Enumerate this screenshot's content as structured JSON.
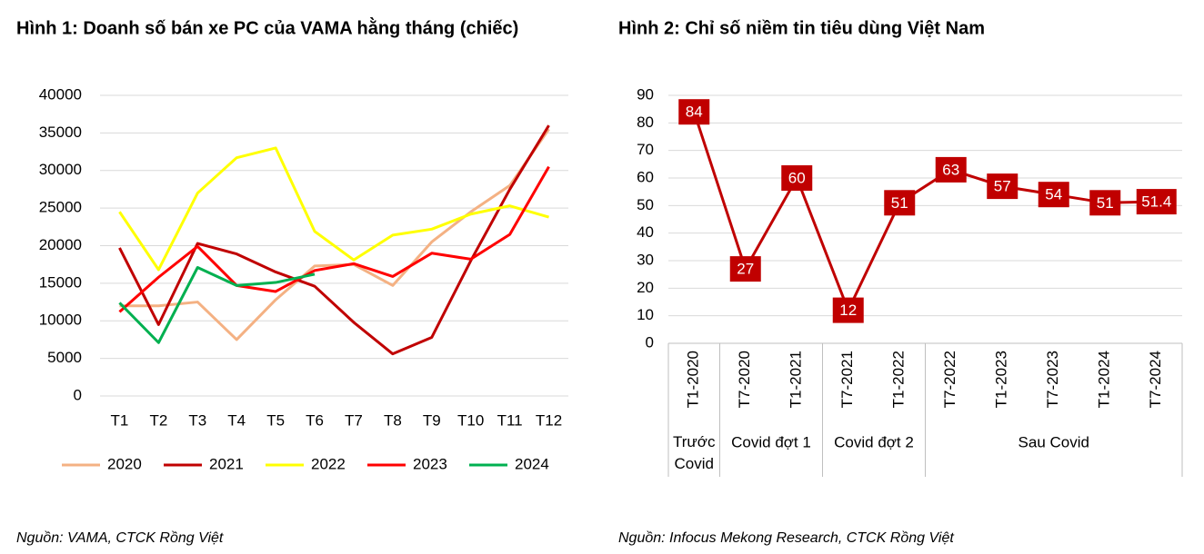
{
  "chart_data": [
    {
      "type": "line",
      "title": "Hình 1: Doanh số bán xe PC của VAMA hằng tháng (chiếc)",
      "categories": [
        "T1",
        "T2",
        "T3",
        "T4",
        "T5",
        "T6",
        "T7",
        "T8",
        "T9",
        "T10",
        "T11",
        "T12"
      ],
      "series": [
        {
          "name": "2020",
          "color": "#f4b183",
          "values": [
            12000,
            12000,
            12500,
            7500,
            12800,
            17300,
            17500,
            14700,
            20500,
            24500,
            28000,
            35500
          ]
        },
        {
          "name": "2021",
          "color": "#c00000",
          "values": [
            19700,
            9500,
            20300,
            18900,
            16500,
            14600,
            9800,
            5600,
            7800,
            18000,
            27500,
            36000
          ]
        },
        {
          "name": "2022",
          "color": "#ffff00",
          "values": [
            24500,
            16800,
            27000,
            31700,
            33000,
            21900,
            18100,
            21400,
            22200,
            24200,
            25300,
            23800
          ]
        },
        {
          "name": "2023",
          "color": "#ff0000",
          "values": [
            11200,
            15800,
            19900,
            14700,
            13900,
            16700,
            17600,
            15900,
            19000,
            18200,
            21500,
            30500
          ]
        },
        {
          "name": "2024",
          "color": "#00b050",
          "values": [
            12400,
            7100,
            17100,
            14700,
            15100,
            16200,
            null,
            null,
            null,
            null,
            null,
            null
          ]
        }
      ],
      "ylim": [
        0,
        40000
      ],
      "yticks": [
        0,
        5000,
        10000,
        15000,
        20000,
        25000,
        30000,
        35000,
        40000
      ],
      "grid": true,
      "legend": "bottom",
      "source": "Nguồn: VAMA, CTCK Rồng Việt"
    },
    {
      "type": "line",
      "title": "Hình 2: Chỉ số niềm tin tiêu dùng Việt Nam",
      "categories": [
        "T1-2020",
        "T7-2020",
        "T1-2021",
        "T7-2021",
        "T1-2022",
        "T7-2022",
        "T1-2023",
        "T7-2023",
        "T1-2024",
        "T7-2024"
      ],
      "groups": [
        {
          "label": "Trước Covid",
          "span": 1
        },
        {
          "label": "Covid đợt 1",
          "span": 2
        },
        {
          "label": "Covid đợt 2",
          "span": 2
        },
        {
          "label": "Sau Covid",
          "span": 5
        }
      ],
      "values": [
        84,
        27,
        60,
        12,
        51,
        63,
        57,
        54,
        51,
        51.4
      ],
      "color": "#c00000",
      "ylim": [
        0,
        90
      ],
      "yticks": [
        0,
        10,
        20,
        30,
        40,
        50,
        60,
        70,
        80,
        90
      ],
      "grid": true,
      "data_labels": true,
      "source": "Nguồn: Infocus Mekong Research, CTCK Rồng Việt"
    }
  ]
}
